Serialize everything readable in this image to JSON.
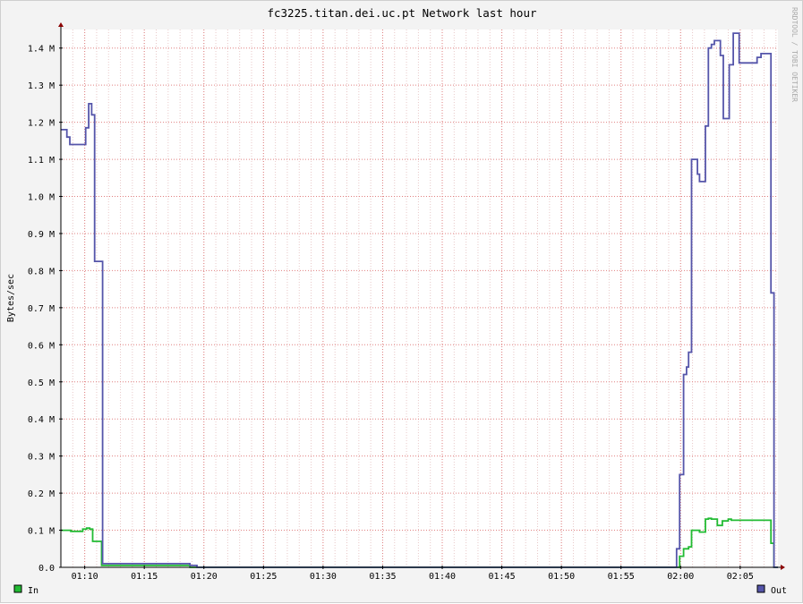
{
  "chart_data": {
    "type": "line",
    "title": "fc3225.titan.dei.uc.pt Network last hour",
    "ylabel": "Bytes/sec",
    "watermark": "RRDTOOL / TOBI OETIKER",
    "ylim": [
      0,
      1.45
    ],
    "yticks": [
      {
        "v": 0.0,
        "label": "0.0"
      },
      {
        "v": 0.1,
        "label": "0.1 M"
      },
      {
        "v": 0.2,
        "label": "0.2 M"
      },
      {
        "v": 0.3,
        "label": "0.3 M"
      },
      {
        "v": 0.4,
        "label": "0.4 M"
      },
      {
        "v": 0.5,
        "label": "0.5 M"
      },
      {
        "v": 0.6,
        "label": "0.6 M"
      },
      {
        "v": 0.7,
        "label": "0.7 M"
      },
      {
        "v": 0.8,
        "label": "0.8 M"
      },
      {
        "v": 0.9,
        "label": "0.9 M"
      },
      {
        "v": 1.0,
        "label": "1.0 M"
      },
      {
        "v": 1.1,
        "label": "1.1 M"
      },
      {
        "v": 1.2,
        "label": "1.2 M"
      },
      {
        "v": 1.3,
        "label": "1.3 M"
      },
      {
        "v": 1.4,
        "label": "1.4 M"
      }
    ],
    "xticks": [
      {
        "t": "01:10",
        "label": "01:10"
      },
      {
        "t": "01:15",
        "label": "01:15"
      },
      {
        "t": "01:20",
        "label": "01:20"
      },
      {
        "t": "01:25",
        "label": "01:25"
      },
      {
        "t": "01:30",
        "label": "01:30"
      },
      {
        "t": "01:35",
        "label": "01:35"
      },
      {
        "t": "01:40",
        "label": "01:40"
      },
      {
        "t": "01:45",
        "label": "01:45"
      },
      {
        "t": "01:50",
        "label": "01:50"
      },
      {
        "t": "01:55",
        "label": "01:55"
      },
      {
        "t": "02:00",
        "label": "02:00"
      },
      {
        "t": "02:05",
        "label": "02:05"
      }
    ],
    "xrange": [
      "01:08:00",
      "02:08:10"
    ],
    "grid": true,
    "series": [
      {
        "name": "In",
        "color": "#22bb33",
        "points": [
          [
            "01:08:00",
            0.1
          ],
          [
            "01:08:50",
            0.097
          ],
          [
            "01:09:50",
            0.103
          ],
          [
            "01:10:10",
            0.106
          ],
          [
            "01:10:25",
            0.103
          ],
          [
            "01:10:40",
            0.07
          ],
          [
            "01:11:25",
            0.005
          ],
          [
            "01:18:50",
            0.0
          ],
          [
            "01:59:40",
            0.0
          ],
          [
            "01:59:55",
            0.03
          ],
          [
            "02:00:15",
            0.05
          ],
          [
            "02:00:40",
            0.055
          ],
          [
            "02:00:55",
            0.1
          ],
          [
            "02:01:20",
            0.1
          ],
          [
            "02:01:35",
            0.095
          ],
          [
            "02:02:05",
            0.13
          ],
          [
            "02:02:20",
            0.132
          ],
          [
            "02:02:35",
            0.13
          ],
          [
            "02:03:05",
            0.113
          ],
          [
            "02:03:30",
            0.125
          ],
          [
            "02:04:00",
            0.13
          ],
          [
            "02:04:15",
            0.127
          ],
          [
            "02:06:15",
            0.127
          ],
          [
            "02:07:20",
            0.127
          ],
          [
            "02:07:35",
            0.065
          ],
          [
            "02:07:50",
            0.0
          ]
        ]
      },
      {
        "name": "Out",
        "color": "#5555aa",
        "points": [
          [
            "01:08:00",
            1.18
          ],
          [
            "01:08:30",
            1.16
          ],
          [
            "01:08:45",
            1.14
          ],
          [
            "01:10:05",
            1.185
          ],
          [
            "01:10:20",
            1.25
          ],
          [
            "01:10:35",
            1.22
          ],
          [
            "01:10:50",
            0.825
          ],
          [
            "01:11:30",
            0.01
          ],
          [
            "01:18:50",
            0.005
          ],
          [
            "01:19:25",
            0.0
          ],
          [
            "01:59:30",
            0.0
          ],
          [
            "01:59:40",
            0.05
          ],
          [
            "01:59:55",
            0.25
          ],
          [
            "02:00:15",
            0.52
          ],
          [
            "02:00:30",
            0.54
          ],
          [
            "02:00:40",
            0.58
          ],
          [
            "02:00:55",
            1.1
          ],
          [
            "02:01:25",
            1.06
          ],
          [
            "02:01:35",
            1.04
          ],
          [
            "02:02:05",
            1.19
          ],
          [
            "02:02:20",
            1.4
          ],
          [
            "02:02:35",
            1.41
          ],
          [
            "02:02:50",
            1.42
          ],
          [
            "02:03:20",
            1.38
          ],
          [
            "02:03:35",
            1.21
          ],
          [
            "02:04:05",
            1.355
          ],
          [
            "02:04:25",
            1.44
          ],
          [
            "02:04:55",
            1.36
          ],
          [
            "02:06:15",
            1.36
          ],
          [
            "02:06:25",
            1.375
          ],
          [
            "02:06:45",
            1.385
          ],
          [
            "02:07:10",
            1.385
          ],
          [
            "02:07:35",
            0.74
          ],
          [
            "02:07:50",
            0.0
          ],
          [
            "02:08:10",
            0.0
          ]
        ]
      }
    ],
    "legend": [
      {
        "name": "In",
        "color": "#22bb33",
        "position": "bottom-left"
      },
      {
        "name": "Out",
        "color": "#5555aa",
        "position": "bottom-right"
      }
    ]
  }
}
